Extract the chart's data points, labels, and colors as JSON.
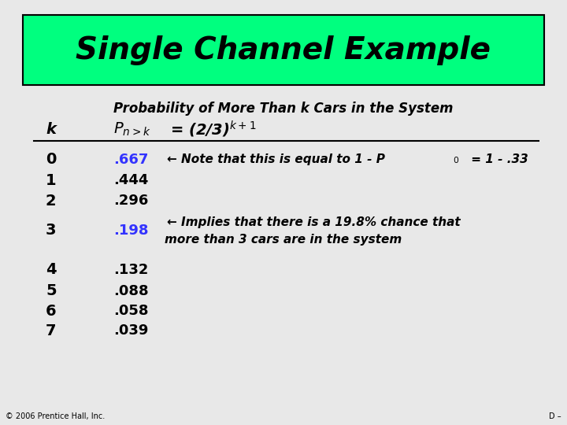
{
  "title": "Single Channel Example",
  "title_bg": "#00FF7F",
  "subtitle": "Probability of More Than k Cars in the System",
  "bg_color": "#E8E8E8",
  "footer_left": "© 2006 Prentice Hall, Inc.",
  "footer_right": "D –",
  "rows": [
    {
      "k": "0",
      "val": ".667",
      "val_color": "#3333FF",
      "note_blue": ".667",
      "note": "← Note that this is equal to 1 - P",
      "note_sub": "0",
      "note_end": " = 1 - .33"
    },
    {
      "k": "1",
      "val": ".444",
      "val_color": "#000000",
      "note": "",
      "note_sub": "",
      "note_end": ""
    },
    {
      "k": "2",
      "val": ".296",
      "val_color": "#000000",
      "note": "",
      "note_sub": "",
      "note_end": ""
    },
    {
      "k": "3",
      "val": ".198",
      "val_color": "#3333FF",
      "note": "← Implies that there is a 19.8% chance that",
      "note2": "more than 3 cars are in the system",
      "note_sub": "",
      "note_end": ""
    },
    {
      "k": "4",
      "val": ".132",
      "val_color": "#000000",
      "note": "",
      "note_sub": "",
      "note_end": ""
    },
    {
      "k": "5",
      "val": ".088",
      "val_color": "#000000",
      "note": "",
      "note_sub": "",
      "note_end": ""
    },
    {
      "k": "6",
      "val": ".058",
      "val_color": "#000000",
      "note": "",
      "note_sub": "",
      "note_end": ""
    },
    {
      "k": "7",
      "val": ".039",
      "val_color": "#000000",
      "note": "",
      "note_sub": "",
      "note_end": ""
    }
  ]
}
